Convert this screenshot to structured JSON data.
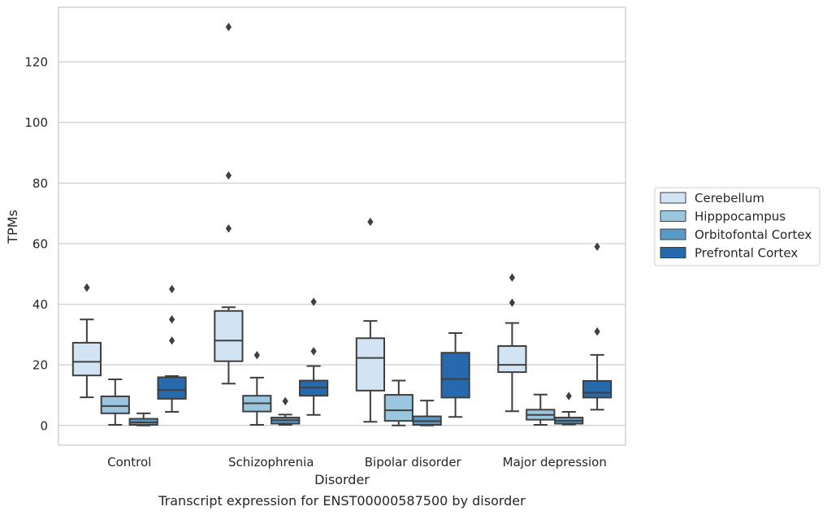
{
  "chart_data": {
    "type": "box",
    "xlabel": "Disorder",
    "ylabel": "TPMs",
    "caption": "Transcript expression for ENST00000587500 by disorder",
    "ylim": [
      -6.5,
      138
    ],
    "yticks": [
      0,
      20,
      40,
      60,
      80,
      100,
      120
    ],
    "grid": "horizontal",
    "legend_placement": "right",
    "categories": [
      "Control",
      "Schizophrenia",
      "Bipolar disorder",
      "Major depression"
    ],
    "series": [
      {
        "name": "Cerebellum",
        "color": "#d2e3f3",
        "boxes": [
          {
            "whisker_low": 9.3,
            "q1": 16.5,
            "median": 21,
            "q3": 27.3,
            "whisker_high": 35,
            "outliers": [
              45.5,
              45.5
            ]
          },
          {
            "whisker_low": 13.8,
            "q1": 21.2,
            "median": 28,
            "q3": 37.8,
            "whisker_high": 39,
            "outliers": [
              131.5,
              82.5,
              65
            ]
          },
          {
            "whisker_low": 1.2,
            "q1": 11.5,
            "median": 22.3,
            "q3": 28.8,
            "whisker_high": 34.5,
            "outliers": [
              67.2
            ]
          },
          {
            "whisker_low": 4.7,
            "q1": 17.6,
            "median": 20,
            "q3": 26.2,
            "whisker_high": 33.8,
            "outliers": [
              48.8,
              40.5
            ]
          }
        ]
      },
      {
        "name": "Hipppocampus",
        "color": "#9ac7df",
        "boxes": [
          {
            "whisker_low": 0.2,
            "q1": 4,
            "median": 6.4,
            "q3": 9.6,
            "whisker_high": 15.2,
            "outliers": []
          },
          {
            "whisker_low": 0.2,
            "q1": 4.6,
            "median": 7.3,
            "q3": 9.8,
            "whisker_high": 15.8,
            "outliers": [
              23.2
            ]
          },
          {
            "whisker_low": 0,
            "q1": 1.5,
            "median": 5,
            "q3": 10.1,
            "whisker_high": 14.8,
            "outliers": []
          },
          {
            "whisker_low": 0.2,
            "q1": 1.9,
            "median": 3.5,
            "q3": 5.2,
            "whisker_high": 10.2,
            "outliers": []
          }
        ]
      },
      {
        "name": "Orbitofontal Cortex",
        "color": "#5b9ac7",
        "boxes": [
          {
            "whisker_low": 0,
            "q1": 0.2,
            "median": 1,
            "q3": 2.2,
            "whisker_high": 4,
            "outliers": []
          },
          {
            "whisker_low": 0.2,
            "q1": 0.6,
            "median": 1.7,
            "q3": 2.6,
            "whisker_high": 3.6,
            "outliers": [
              8
            ]
          },
          {
            "whisker_low": 0,
            "q1": 0.2,
            "median": 1.4,
            "q3": 3,
            "whisker_high": 8.2,
            "outliers": []
          },
          {
            "whisker_low": 0.3,
            "q1": 0.6,
            "median": 1.5,
            "q3": 2.6,
            "whisker_high": 4.5,
            "outliers": [
              9.7
            ]
          }
        ]
      },
      {
        "name": "Prefrontal Cortex",
        "color": "#2769ad",
        "boxes": [
          {
            "whisker_low": 4.5,
            "q1": 8.8,
            "median": 11.7,
            "q3": 15.9,
            "whisker_high": 16.3,
            "outliers": [
              45,
              35,
              28
            ]
          },
          {
            "whisker_low": 3.5,
            "q1": 9.8,
            "median": 12.5,
            "q3": 14.8,
            "whisker_high": 19.6,
            "outliers": [
              40.8,
              24.5
            ]
          },
          {
            "whisker_low": 2.8,
            "q1": 9.2,
            "median": 15.3,
            "q3": 24,
            "whisker_high": 30.5,
            "outliers": []
          },
          {
            "whisker_low": 5.2,
            "q1": 9.2,
            "median": 10.8,
            "q3": 14.7,
            "whisker_high": 23.3,
            "outliers": [
              59,
              31
            ]
          }
        ]
      }
    ]
  }
}
